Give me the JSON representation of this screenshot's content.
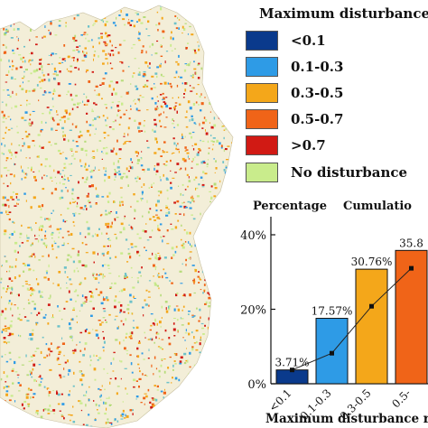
{
  "legend": {
    "title": "Maximum disturbance",
    "items": [
      {
        "label": "<0.1",
        "color": "#0a3a8c"
      },
      {
        "label": "0.1-0.3",
        "color": "#2e9be6"
      },
      {
        "label": "0.3-0.5",
        "color": "#f4a71a"
      },
      {
        "label": "0.5-0.7",
        "color": "#f06418"
      },
      {
        "label": ">0.7",
        "color": "#d11a14"
      },
      {
        "label": "No disturbance",
        "color": "#c9ec8c"
      }
    ]
  },
  "chart_data": {
    "type": "bar",
    "left_axis_title": "Percentage",
    "right_axis_title": "Cumulatio",
    "xlabel": "Maximum disturbance r",
    "categories": [
      "<0.1",
      "0.1-0.3",
      "0.3-0.5",
      "0.5-"
    ],
    "values": [
      3.71,
      17.57,
      30.76,
      35.8
    ],
    "data_labels": [
      "3.71%",
      "17.57%",
      "30.76%",
      "35.8"
    ],
    "cumulative_line": [
      3.71,
      8.2,
      20.8,
      31.0
    ],
    "bar_colors": [
      "#0a3a8c",
      "#2e9be6",
      "#f4a71a",
      "#f06418"
    ],
    "ylim": [
      0,
      40
    ],
    "yticks": [
      0,
      20,
      40
    ],
    "ytick_labels": [
      "0%",
      "20%",
      "40%"
    ]
  }
}
